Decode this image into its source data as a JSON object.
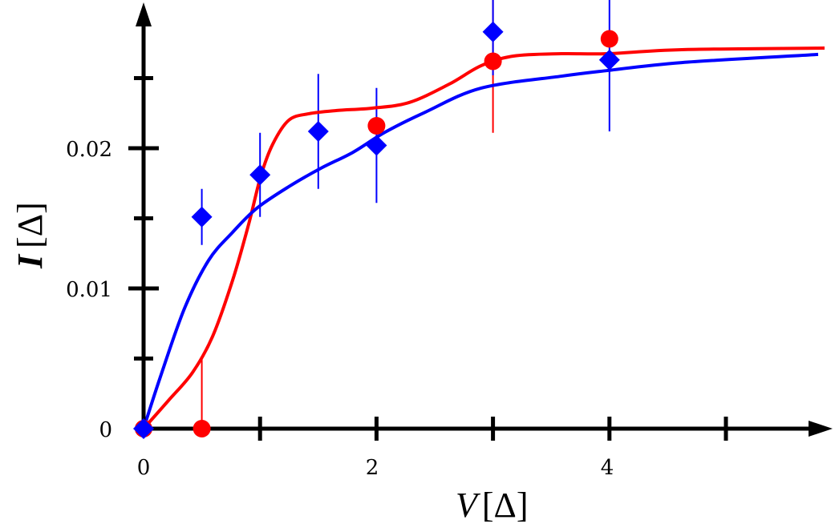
{
  "chart_data": {
    "type": "scatter",
    "xlabel": {
      "var": "V",
      "unit": "[Δ]"
    },
    "ylabel": {
      "var": "I",
      "unit": "[Δ]"
    },
    "xlim": [
      0,
      5.85
    ],
    "ylim": [
      0,
      0.0305
    ],
    "x_ticks_major": [
      0,
      1,
      2,
      3,
      4,
      5
    ],
    "x_tick_labels": [
      {
        "v": 0,
        "label": "0"
      },
      {
        "v": 2,
        "label": "2"
      },
      {
        "v": 4,
        "label": "4"
      }
    ],
    "y_ticks_major": [
      0,
      0.01,
      0.02
    ],
    "y_ticks_minor": [
      0.005,
      0.015,
      0.025
    ],
    "y_tick_labels": [
      {
        "v": 0,
        "label": "0"
      },
      {
        "v": 0.01,
        "label": "0.01"
      },
      {
        "v": 0.02,
        "label": "0.02"
      }
    ],
    "grid": false,
    "series": [
      {
        "marker": "circle",
        "color": "#ff0000",
        "points": [
          {
            "x": 0,
            "y": 0,
            "err": 0
          },
          {
            "x": 0.5,
            "y": 0,
            "err": 0.005
          },
          {
            "x": 2,
            "y": 0.0216,
            "err": 0
          },
          {
            "x": 3,
            "y": 0.0262,
            "err": 0.0051
          },
          {
            "x": 4,
            "y": 0.0278,
            "err": 0
          }
        ],
        "curve": [
          [
            0,
            0
          ],
          [
            0.213,
            0.002
          ],
          [
            0.42,
            0.004
          ],
          [
            0.592,
            0.00657
          ],
          [
            0.764,
            0.01057
          ],
          [
            0.902,
            0.01457
          ],
          [
            1.006,
            0.018
          ],
          [
            1.109,
            0.02029
          ],
          [
            1.247,
            0.022
          ],
          [
            1.419,
            0.02246
          ],
          [
            1.66,
            0.02269
          ],
          [
            1.963,
            0.02286
          ],
          [
            2.28,
            0.02326
          ],
          [
            2.624,
            0.02457
          ],
          [
            2.899,
            0.02589
          ],
          [
            3.175,
            0.02657
          ],
          [
            3.588,
            0.02674
          ],
          [
            3.981,
            0.02674
          ],
          [
            4.621,
            0.02703
          ],
          [
            5.847,
            0.02714
          ]
        ]
      },
      {
        "marker": "diamond",
        "color": "#0000ff",
        "points": [
          {
            "x": 0,
            "y": 0,
            "err": 0
          },
          {
            "x": 0.5,
            "y": 0.0151,
            "err": 0.002
          },
          {
            "x": 1,
            "y": 0.0181,
            "err": 0.003
          },
          {
            "x": 1.5,
            "y": 0.0212,
            "err": 0.0041
          },
          {
            "x": 2,
            "y": 0.0202,
            "err": 0.0041
          },
          {
            "x": 3,
            "y": 0.0283,
            "err": 0.0031
          },
          {
            "x": 4,
            "y": 0.0263,
            "err": 0.0051
          }
        ],
        "curve": [
          [
            0,
            0
          ],
          [
            0.145,
            0.00371
          ],
          [
            0.351,
            0.00857
          ],
          [
            0.558,
            0.012
          ],
          [
            0.764,
            0.014
          ],
          [
            0.971,
            0.01571
          ],
          [
            1.247,
            0.01726
          ],
          [
            1.522,
            0.01857
          ],
          [
            1.798,
            0.01971
          ],
          [
            2.073,
            0.02114
          ],
          [
            2.418,
            0.02257
          ],
          [
            2.899,
            0.02429
          ],
          [
            3.588,
            0.02514
          ],
          [
            3.981,
            0.02554
          ],
          [
            4.621,
            0.02611
          ],
          [
            5.792,
            0.02669
          ]
        ]
      }
    ]
  }
}
